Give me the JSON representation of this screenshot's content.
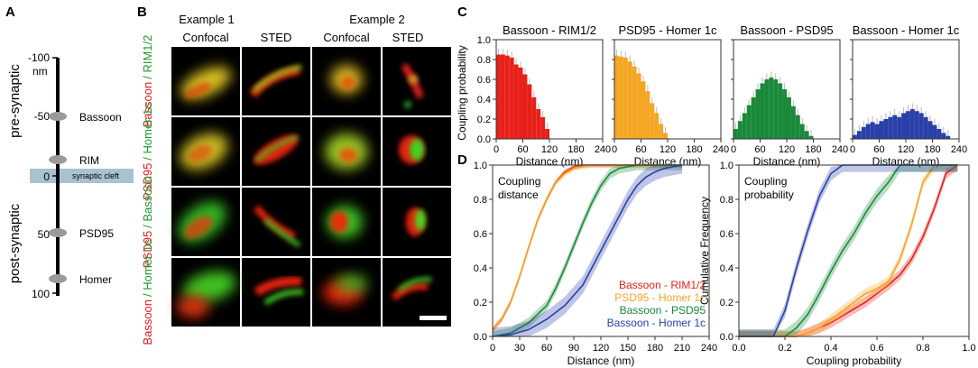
{
  "panels": {
    "a": "A",
    "b": "B",
    "c": "C",
    "d": "D"
  },
  "panel_a": {
    "pre_label": "pre-synaptic",
    "post_label": "post-synaptic",
    "ticks": [
      {
        "value": "-100",
        "label_value": -100
      },
      {
        "value": "-50",
        "label_value": -50
      },
      {
        "value": "0",
        "label_value": 0
      },
      {
        "value": "50",
        "label_value": 50
      },
      {
        "value": "100",
        "label_value": 100
      }
    ],
    "unit": "nm",
    "cleft_label": "synaptic cleft",
    "proteins": [
      {
        "name": "Bassoon",
        "position_nm": -50
      },
      {
        "name": "RIM",
        "position_nm": -20
      },
      {
        "name": "PSD95",
        "position_nm": 50
      },
      {
        "name": "Homer",
        "position_nm": 85
      }
    ]
  },
  "panel_b": {
    "example1": "Example 1",
    "example2": "Example 2",
    "col_labels": [
      "Confocal",
      "STED",
      "Confocal",
      "STED"
    ],
    "rows": [
      {
        "red": "Bassoon",
        "green": "/ RIM1/2"
      },
      {
        "red": "PSD95",
        "green": "/ Homer 1c"
      },
      {
        "red": "PSD95",
        "green": "/ Bassoon"
      },
      {
        "red": "Bassoon",
        "green": "/ Homer 1c"
      }
    ],
    "colors": {
      "red": "#e8141a",
      "green": "#1a9a2a"
    }
  },
  "chart_data": [
    {
      "type": "bar",
      "title": "Bassoon - RIM1/2",
      "xlabel": "Distance (nm)",
      "ylabel": "Coupling probability",
      "xlim": [
        0,
        240
      ],
      "ylim": [
        0,
        1.0
      ],
      "xticks": [
        0,
        60,
        120,
        180,
        240
      ],
      "yticks": [
        "0.0",
        "0.2",
        "0.4",
        "0.6",
        "0.8",
        "1.0"
      ],
      "bin_width": 10,
      "color": "#e8201a",
      "values": [
        0.85,
        0.85,
        0.84,
        0.82,
        0.75,
        0.72,
        0.65,
        0.55,
        0.42,
        0.3,
        0.22,
        0.1,
        0,
        0,
        0,
        0,
        0,
        0,
        0,
        0,
        0,
        0,
        0,
        0
      ]
    },
    {
      "type": "bar",
      "title": "PSD95 - Homer 1c",
      "xlabel": "Distance (nm)",
      "xlim": [
        0,
        240
      ],
      "ylim": [
        0,
        1.0
      ],
      "xticks": [
        0,
        60,
        120,
        180,
        240
      ],
      "bin_width": 10,
      "color": "#f5a623",
      "values": [
        0.84,
        0.83,
        0.82,
        0.78,
        0.73,
        0.66,
        0.58,
        0.48,
        0.36,
        0.26,
        0.15,
        0.06,
        0,
        0,
        0,
        0,
        0,
        0,
        0,
        0,
        0,
        0,
        0,
        0
      ]
    },
    {
      "type": "bar",
      "title": "Bassoon - PSD95",
      "xlabel": "Distance (nm)",
      "xlim": [
        0,
        240
      ],
      "ylim": [
        0,
        1.0
      ],
      "xticks": [
        0,
        60,
        120,
        180,
        240
      ],
      "bin_width": 10,
      "color": "#1a8a3a",
      "values": [
        0.1,
        0.18,
        0.26,
        0.34,
        0.42,
        0.5,
        0.56,
        0.6,
        0.62,
        0.6,
        0.56,
        0.5,
        0.42,
        0.33,
        0.24,
        0.15,
        0.08,
        0.03,
        0,
        0,
        0,
        0,
        0,
        0
      ]
    },
    {
      "type": "bar",
      "title": "Bassoon - Homer 1c",
      "xlabel": "Distance (nm)",
      "xlim": [
        0,
        240
      ],
      "ylim": [
        0,
        1.0
      ],
      "xticks": [
        0,
        60,
        120,
        180,
        240
      ],
      "bin_width": 10,
      "color": "#2a40a8",
      "values": [
        0.04,
        0.08,
        0.12,
        0.15,
        0.17,
        0.15,
        0.18,
        0.2,
        0.22,
        0.24,
        0.22,
        0.26,
        0.28,
        0.3,
        0.28,
        0.26,
        0.22,
        0.18,
        0.14,
        0.1,
        0.06,
        0.03,
        0,
        0
      ]
    },
    {
      "type": "line",
      "title": "Coupling distance",
      "xlabel": "Distance (nm)",
      "ylabel": "",
      "xlim": [
        0,
        240
      ],
      "ylim": [
        0,
        1.0
      ],
      "xticks": [
        0,
        30,
        60,
        90,
        120,
        150,
        180,
        210,
        240
      ],
      "yticks": [
        "0.0",
        "0.2",
        "0.4",
        "0.6",
        "0.8",
        "1.0"
      ],
      "legend": [
        {
          "name": "Bassoon - RIM1/2",
          "color": "#e8201a"
        },
        {
          "name": "PSD95 - Homer 1c",
          "color": "#f5a623"
        },
        {
          "name": "Bassoon - PSD95",
          "color": "#1a8a3a"
        },
        {
          "name": "Bassoon - Homer 1c",
          "color": "#2a40a8"
        }
      ],
      "series": [
        {
          "name": "Bassoon - RIM1/2",
          "color": "#e8201a",
          "band": 0.015,
          "x": [
            0,
            10,
            20,
            30,
            40,
            50,
            60,
            70,
            80,
            90,
            100,
            110,
            120,
            210
          ],
          "y": [
            0.04,
            0.1,
            0.2,
            0.35,
            0.52,
            0.68,
            0.8,
            0.9,
            0.96,
            0.99,
            1,
            1,
            1,
            1
          ]
        },
        {
          "name": "PSD95 - Homer 1c",
          "color": "#f5a623",
          "band": 0.015,
          "x": [
            0,
            10,
            20,
            30,
            40,
            50,
            60,
            70,
            80,
            90,
            100,
            110,
            120,
            210
          ],
          "y": [
            0.04,
            0.1,
            0.2,
            0.35,
            0.52,
            0.68,
            0.8,
            0.9,
            0.95,
            0.98,
            0.99,
            1,
            1,
            1
          ]
        },
        {
          "name": "Bassoon - PSD95",
          "color": "#1a8a3a",
          "band": 0.03,
          "x": [
            0,
            20,
            40,
            60,
            70,
            80,
            90,
            100,
            110,
            120,
            130,
            140,
            150,
            160,
            210
          ],
          "y": [
            0,
            0.02,
            0.08,
            0.18,
            0.28,
            0.4,
            0.53,
            0.66,
            0.78,
            0.88,
            0.95,
            0.98,
            0.99,
            1,
            1
          ]
        },
        {
          "name": "Bassoon - Homer 1c",
          "color": "#2a40a8",
          "band": 0.05,
          "x": [
            0,
            20,
            40,
            60,
            80,
            100,
            110,
            120,
            130,
            140,
            150,
            160,
            170,
            180,
            190,
            200,
            210
          ],
          "y": [
            0,
            0.01,
            0.04,
            0.1,
            0.18,
            0.3,
            0.4,
            0.5,
            0.6,
            0.7,
            0.8,
            0.88,
            0.93,
            0.96,
            0.98,
            0.99,
            1
          ]
        }
      ]
    },
    {
      "type": "line",
      "title": "Coupling probability",
      "xlabel": "Coupling probability",
      "ylabel": "Cumulative Frequency",
      "xlim": [
        0,
        1.0
      ],
      "ylim": [
        0,
        1.0
      ],
      "xticks": [
        "0.0",
        "0.2",
        "0.4",
        "0.6",
        "0.8",
        "1.0"
      ],
      "yticks": [
        "0.0",
        "0.2",
        "0.4",
        "0.6",
        "0.8",
        "1.0"
      ],
      "series": [
        {
          "name": "Bassoon - RIM1/2",
          "color": "#e8201a",
          "band": 0.03,
          "x": [
            0,
            0.25,
            0.3,
            0.35,
            0.4,
            0.45,
            0.5,
            0.55,
            0.6,
            0.65,
            0.7,
            0.75,
            0.8,
            0.85,
            0.9,
            0.95
          ],
          "y": [
            0,
            0,
            0.02,
            0.05,
            0.08,
            0.12,
            0.16,
            0.2,
            0.25,
            0.3,
            0.36,
            0.45,
            0.58,
            0.75,
            0.95,
            1
          ]
        },
        {
          "name": "PSD95 - Homer 1c",
          "color": "#f5a623",
          "band": 0.03,
          "x": [
            0,
            0.25,
            0.3,
            0.35,
            0.4,
            0.45,
            0.5,
            0.55,
            0.6,
            0.65,
            0.7,
            0.75,
            0.8,
            0.85,
            0.95
          ],
          "y": [
            0,
            0,
            0.02,
            0.05,
            0.1,
            0.15,
            0.2,
            0.25,
            0.28,
            0.32,
            0.45,
            0.65,
            0.9,
            1,
            1
          ]
        },
        {
          "name": "Bassoon - PSD95",
          "color": "#1a8a3a",
          "band": 0.04,
          "x": [
            0,
            0.2,
            0.25,
            0.3,
            0.35,
            0.4,
            0.45,
            0.5,
            0.55,
            0.6,
            0.65,
            0.7,
            0.75,
            0.95
          ],
          "y": [
            0,
            0,
            0.05,
            0.13,
            0.25,
            0.38,
            0.5,
            0.6,
            0.72,
            0.82,
            0.9,
            1,
            1,
            1
          ]
        },
        {
          "name": "Bassoon - Homer 1c",
          "color": "#2a40a8",
          "band": 0.04,
          "x": [
            0,
            0.15,
            0.2,
            0.25,
            0.3,
            0.35,
            0.4,
            0.45,
            0.5,
            0.95
          ],
          "y": [
            0,
            0,
            0.15,
            0.4,
            0.62,
            0.82,
            0.95,
            1,
            1,
            1
          ]
        }
      ]
    }
  ],
  "panel_d": {
    "left_title_line1": "Coupling",
    "left_title_line2": "distance",
    "right_title_line1": "Coupling",
    "right_title_line2": "probability"
  }
}
